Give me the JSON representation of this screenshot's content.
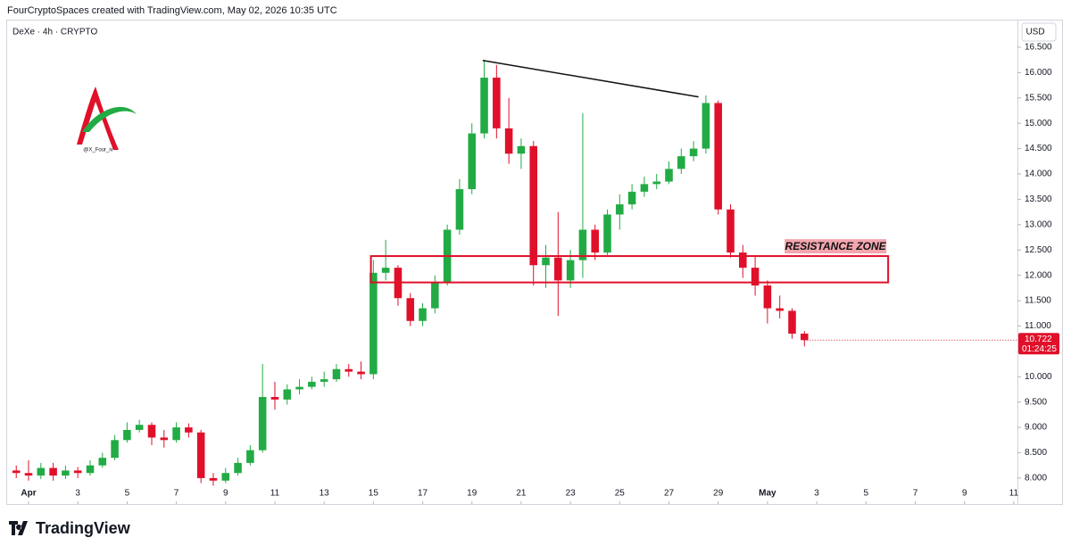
{
  "header": "FourCryptoSpaces created with TradingView.com, May 02, 2026 10:35 UTC",
  "footer": "TradingView",
  "watermark": "@X_Four_iv",
  "chart_data": {
    "type": "candlestick",
    "title": "DeXe · 4h · CRYPTO",
    "currency": "USD",
    "up_color": "#22ab44",
    "down_color": "#e0102a",
    "grid": false,
    "x": [
      -0.5,
      0,
      0.5,
      1,
      1.5,
      2,
      2.5,
      3,
      3.5,
      4,
      4.5,
      5,
      5.5,
      6,
      6.5,
      7,
      7.5,
      8,
      8.5,
      9,
      9.5,
      10,
      10.5,
      11,
      11.5,
      12,
      12.5,
      13,
      13.5,
      14,
      14.5,
      15,
      15.5,
      16,
      16.5,
      17,
      17.5,
      18,
      18.5,
      19,
      19.5,
      20,
      20.5,
      21,
      21.5,
      22,
      22.5,
      23,
      23.5,
      24,
      24.5,
      25,
      25.5,
      26,
      26.5,
      27,
      27.5,
      28,
      28.5,
      29,
      29.5,
      30,
      30.5,
      31,
      31.5
    ],
    "open": [
      8.15,
      8.1,
      8.05,
      8.2,
      8.05,
      8.15,
      8.1,
      8.25,
      8.4,
      8.75,
      8.95,
      9.05,
      8.8,
      8.75,
      9.0,
      8.9,
      8.0,
      7.95,
      8.1,
      8.3,
      8.55,
      9.6,
      9.55,
      9.75,
      9.8,
      9.9,
      9.95,
      10.15,
      10.1,
      10.05,
      12.05,
      12.15,
      11.55,
      11.1,
      11.35,
      11.85,
      12.9,
      13.7,
      14.8,
      15.9,
      14.9,
      14.4,
      14.55,
      12.2,
      12.35,
      11.9,
      12.3,
      12.9,
      12.45,
      13.2,
      13.4,
      13.65,
      13.8,
      13.85,
      14.1,
      14.35,
      14.5,
      15.4,
      13.3,
      12.45,
      12.15,
      11.8,
      11.35,
      11.3,
      10.85
    ],
    "high": [
      8.25,
      8.35,
      8.3,
      8.3,
      8.25,
      8.22,
      8.35,
      8.5,
      8.85,
      9.1,
      9.15,
      9.1,
      8.95,
      9.1,
      9.08,
      8.95,
      8.1,
      8.2,
      8.4,
      8.65,
      10.25,
      9.9,
      9.85,
      9.95,
      10.0,
      10.1,
      10.25,
      10.25,
      10.3,
      12.3,
      12.7,
      12.2,
      11.65,
      11.45,
      12.0,
      13.0,
      13.9,
      15.0,
      16.25,
      16.15,
      15.5,
      14.7,
      14.65,
      12.6,
      13.25,
      12.5,
      15.2,
      13.0,
      13.3,
      13.6,
      13.8,
      13.95,
      14.0,
      14.25,
      14.5,
      14.65,
      15.55,
      15.45,
      13.4,
      12.6,
      12.4,
      11.9,
      11.6,
      11.35,
      10.9
    ],
    "low": [
      8.0,
      7.95,
      7.98,
      7.95,
      7.98,
      8.0,
      8.05,
      8.2,
      8.35,
      8.7,
      8.9,
      8.65,
      8.6,
      8.7,
      8.8,
      7.9,
      7.85,
      7.9,
      8.05,
      8.25,
      8.5,
      9.35,
      9.45,
      9.65,
      9.75,
      9.8,
      9.9,
      10.0,
      9.95,
      9.95,
      11.9,
      11.4,
      11.0,
      11.0,
      11.25,
      11.8,
      12.8,
      13.6,
      14.7,
      14.7,
      14.2,
      14.1,
      11.8,
      11.75,
      11.2,
      11.75,
      11.95,
      12.3,
      12.4,
      12.9,
      13.3,
      13.55,
      13.7,
      13.8,
      14.0,
      14.25,
      14.4,
      13.2,
      12.35,
      11.95,
      11.6,
      11.05,
      11.15,
      10.75,
      10.6
    ],
    "close": [
      8.1,
      8.05,
      8.2,
      8.05,
      8.15,
      8.1,
      8.25,
      8.4,
      8.75,
      8.95,
      9.05,
      8.8,
      8.75,
      9.0,
      8.9,
      8.0,
      7.95,
      8.1,
      8.3,
      8.55,
      9.6,
      9.55,
      9.75,
      9.8,
      9.9,
      9.95,
      10.15,
      10.1,
      10.05,
      12.05,
      12.15,
      11.55,
      11.1,
      11.35,
      11.85,
      12.9,
      13.7,
      14.8,
      15.9,
      14.9,
      14.4,
      14.55,
      12.2,
      12.35,
      11.9,
      12.3,
      12.9,
      12.45,
      13.2,
      13.4,
      13.65,
      13.8,
      13.85,
      14.1,
      14.35,
      14.5,
      15.4,
      13.3,
      12.45,
      12.15,
      11.8,
      11.35,
      11.3,
      10.85,
      10.722
    ],
    "xlim": [
      -0.87,
      40.15
    ],
    "ylim": [
      7.84,
      16.64
    ],
    "xticks": [
      {
        "value": 0,
        "label": "Apr"
      },
      {
        "value": 2,
        "label": "3"
      },
      {
        "value": 4,
        "label": "5"
      },
      {
        "value": 6,
        "label": "7"
      },
      {
        "value": 8,
        "label": "9"
      },
      {
        "value": 10,
        "label": "11"
      },
      {
        "value": 12,
        "label": "13"
      },
      {
        "value": 14,
        "label": "15"
      },
      {
        "value": 16,
        "label": "17"
      },
      {
        "value": 18,
        "label": "19"
      },
      {
        "value": 20,
        "label": "21"
      },
      {
        "value": 22,
        "label": "23"
      },
      {
        "value": 24,
        "label": "25"
      },
      {
        "value": 26,
        "label": "27"
      },
      {
        "value": 28,
        "label": "29"
      },
      {
        "value": 30,
        "label": "May"
      },
      {
        "value": 32,
        "label": "3"
      },
      {
        "value": 34,
        "label": "5"
      },
      {
        "value": 36,
        "label": "7"
      },
      {
        "value": 38,
        "label": "9"
      },
      {
        "value": 40,
        "label": "11"
      }
    ],
    "yticks": [
      {
        "value": 8,
        "label": "8.000"
      },
      {
        "value": 8.5,
        "label": "8.500"
      },
      {
        "value": 9,
        "label": "9.000"
      },
      {
        "value": 9.5,
        "label": "9.500"
      },
      {
        "value": 10,
        "label": "10.000"
      },
      {
        "value": 10.5,
        "label": "10.500"
      },
      {
        "value": 11,
        "label": "11.000"
      },
      {
        "value": 11.5,
        "label": "11.500"
      },
      {
        "value": 12,
        "label": "12.000"
      },
      {
        "value": 12.5,
        "label": "12.500"
      },
      {
        "value": 13,
        "label": "13.000"
      },
      {
        "value": 13.5,
        "label": "13.500"
      },
      {
        "value": 14,
        "label": "14.000"
      },
      {
        "value": 14.5,
        "label": "14.500"
      },
      {
        "value": 15,
        "label": "15.000"
      },
      {
        "value": 15.5,
        "label": "15.500"
      },
      {
        "value": 16,
        "label": "16.000"
      },
      {
        "value": 16.5,
        "label": "16.500"
      }
    ],
    "price_tag": {
      "value": 10.722,
      "countdown": "01:24:25",
      "color": "#e0102a"
    },
    "resistance_zone": {
      "label": "RESISTANCE ZONE",
      "xlim": [
        13.9,
        34.9
      ],
      "ylim": [
        11.86,
        12.38
      ],
      "color": "#e0102a"
    },
    "trendline": {
      "x": [
        18.44,
        27.2
      ],
      "y": [
        16.24,
        15.52
      ],
      "color": "#111111"
    }
  }
}
